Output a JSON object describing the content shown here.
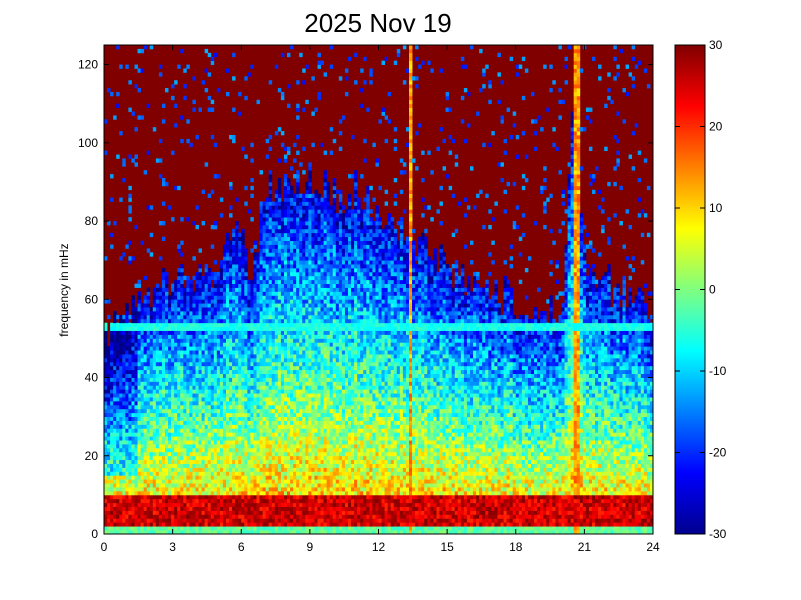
{
  "chart_data": {
    "type": "heatmap",
    "title": "2025 Nov 19",
    "xlabel": "",
    "ylabel": "frequency in mHz",
    "xlim": [
      0,
      24
    ],
    "ylim": [
      0,
      125
    ],
    "xticks": [
      0,
      3,
      6,
      9,
      12,
      15,
      18,
      21,
      24
    ],
    "yticks": [
      0,
      20,
      40,
      60,
      80,
      100,
      120
    ],
    "colorbar": {
      "clim": [
        -30,
        30
      ],
      "ticks": [
        -30,
        -20,
        -10,
        0,
        10,
        20,
        30
      ],
      "colormap": "jet"
    },
    "description_features": {
      "saturated_high_region": "upper frequencies mostly at +30 (dark red)",
      "low_frequency_band": [
        0,
        10
      ],
      "low_frequency_level": 25,
      "horizontal_line_freq": 53,
      "vertical_spike_hours": [
        13.4,
        20.7
      ],
      "quiet_hours": [
        0,
        1.5
      ]
    },
    "envelope": {
      "hours": [
        0,
        1,
        2,
        3,
        4,
        5,
        6,
        6.5,
        7,
        8,
        9,
        10,
        11,
        12,
        13,
        14,
        15,
        16,
        17,
        18,
        19,
        20,
        20.5,
        21,
        22,
        23,
        24
      ],
      "top_mHz": [
        50,
        58,
        62,
        64,
        66,
        68,
        80,
        62,
        88,
        90,
        92,
        86,
        88,
        82,
        78,
        72,
        68,
        64,
        62,
        60,
        58,
        56,
        110,
        70,
        64,
        60,
        56
      ]
    }
  }
}
